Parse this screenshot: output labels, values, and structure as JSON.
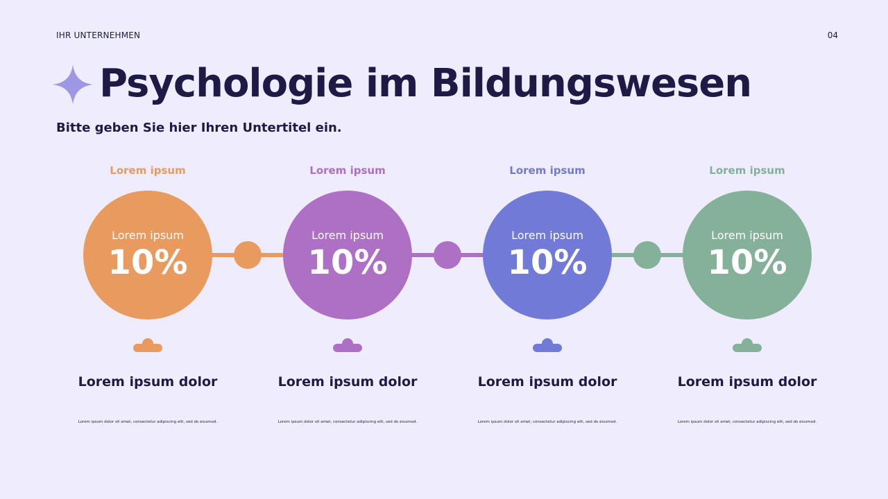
{
  "header": {
    "company": "IHR UNTERNEHMEN",
    "page_number": "04",
    "title": "Psychologie im Bildungswesen",
    "subtitle": "Bitte geben Sie hier Ihren Untertitel ein."
  },
  "colors": {
    "orange": "#E99A5F",
    "purple": "#AE70C4",
    "blue": "#717AD6",
    "green": "#85B09A",
    "star": "#9D97E4"
  },
  "steps": [
    {
      "top_label": "Lorem ipsum",
      "circle_label": "Lorem ipsum",
      "value": "10%",
      "heading": "Lorem ipsum dolor",
      "text": "Lorem ipsum dolor sit amet, consectetur adipiscing elit, sed do eiusmod.",
      "color": "#E99A5F",
      "icon": "cloud-icon"
    },
    {
      "top_label": "Lorem ipsum",
      "circle_label": "Lorem ipsum",
      "value": "10%",
      "heading": "Lorem ipsum dolor",
      "text": "Lorem ipsum dolor sit amet, consectetur adipiscing elit, sed do eiusmod.",
      "color": "#AE70C4",
      "icon": "cloud-icon"
    },
    {
      "top_label": "Lorem ipsum",
      "circle_label": "Lorem ipsum",
      "value": "10%",
      "heading": "Lorem ipsum dolor",
      "text": "Lorem ipsum dolor sit amet, consectetur adipiscing elit, sed do eiusmod.",
      "color": "#717AD6",
      "icon": "cloud-icon"
    },
    {
      "top_label": "Lorem ipsum",
      "circle_label": "Lorem ipsum",
      "value": "10%",
      "heading": "Lorem ipsum dolor",
      "text": "Lorem ipsum dolor sit amet, consectetur adipiscing elit, sed do eiusmod.",
      "color": "#85B09A",
      "icon": "cloud-icon"
    }
  ]
}
